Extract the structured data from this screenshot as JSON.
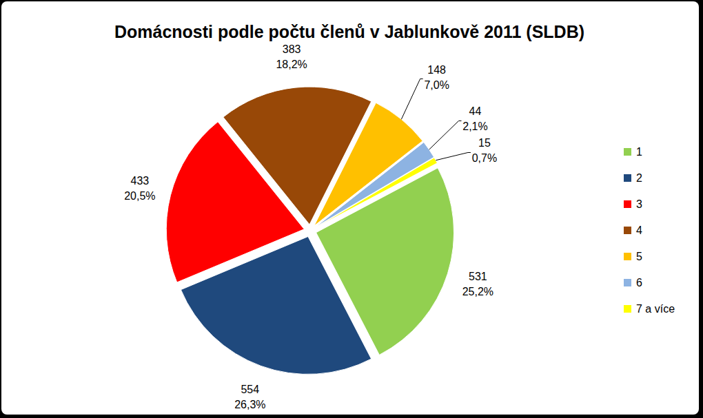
{
  "chart_data": {
    "type": "pie",
    "title": "Domácnosti podle počtu členů v Jablunkově 2011 (SLDB)",
    "categories": [
      "1",
      "2",
      "3",
      "4",
      "5",
      "6",
      "7 a více"
    ],
    "values": [
      531,
      554,
      433,
      383,
      148,
      44,
      15
    ],
    "percentages": [
      25.2,
      26.3,
      20.5,
      18.2,
      7.0,
      2.1,
      0.7
    ],
    "percentage_labels": [
      "25,2%",
      "26,3%",
      "20,5%",
      "18,2%",
      "7,0%",
      "2,1%",
      "0,7%"
    ],
    "colors": [
      "#92d050",
      "#1f497d",
      "#ff0000",
      "#984807",
      "#ffc000",
      "#8db3e2",
      "#ffff00"
    ],
    "data_labels": true,
    "legend": "right"
  }
}
